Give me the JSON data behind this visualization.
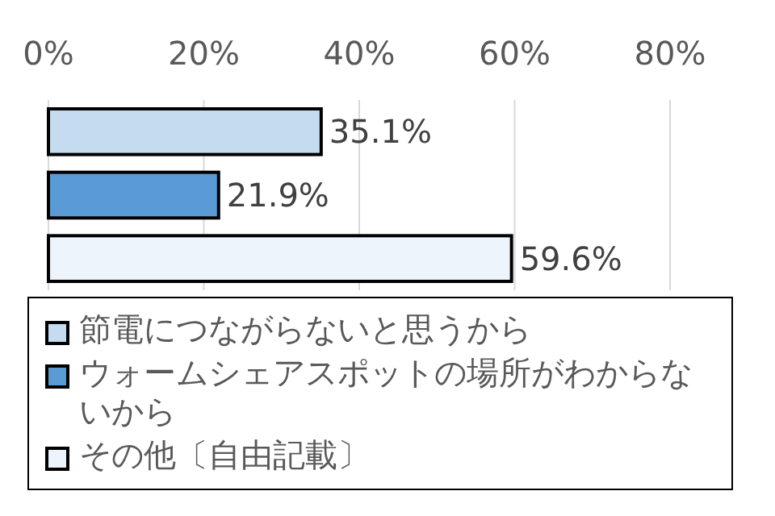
{
  "chart_data": {
    "type": "bar",
    "orientation": "horizontal",
    "stacked": true,
    "categories": [
      null,
      null,
      null
    ],
    "series": [
      {
        "name": "節電につながらないと思うから",
        "color": "#c5dcf0",
        "values": [
          35.1,
          null,
          null
        ],
        "value_labels": [
          "35.1%",
          null,
          null
        ]
      },
      {
        "name": "ウォームシェアスポットの場所がわからないから",
        "color": "#5b9bd5",
        "values": [
          null,
          21.9,
          null
        ],
        "value_labels": [
          null,
          "21.9%",
          null
        ]
      },
      {
        "name": "その他〔自由記載〕",
        "color": "#eef4fb",
        "values": [
          null,
          null,
          59.6
        ],
        "value_labels": [
          null,
          null,
          "59.6%"
        ]
      }
    ],
    "xlim": [
      0,
      80
    ],
    "xticks": [
      {
        "value": 0,
        "label": "0%"
      },
      {
        "value": 20,
        "label": "20%"
      },
      {
        "value": 40,
        "label": "40%"
      },
      {
        "value": 60,
        "label": "60%"
      },
      {
        "value": 80,
        "label": "80%"
      }
    ],
    "grid": "x",
    "legend": "bottom"
  }
}
